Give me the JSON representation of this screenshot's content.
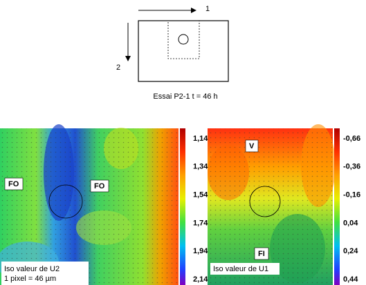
{
  "schematic": {
    "axis_1": "1",
    "axis_2": "2",
    "caption": "Essai P2-1   t = 46 h"
  },
  "panels": [
    {
      "scale_labels": [
        "1,14",
        "1,34",
        "1,54",
        "1,74",
        "1,94",
        "2,14"
      ],
      "annotations": [
        "FO",
        "FO"
      ],
      "legend": [
        "Iso valeur de U2",
        "1 pixel = 46 µm"
      ]
    },
    {
      "scale_labels": [
        "-0,66",
        "-0,36",
        "-0,16",
        "0,04",
        "0,24",
        "0,44"
      ],
      "annotations": [
        "V",
        "FI"
      ],
      "legend": [
        "Iso valeur de U1"
      ]
    }
  ]
}
